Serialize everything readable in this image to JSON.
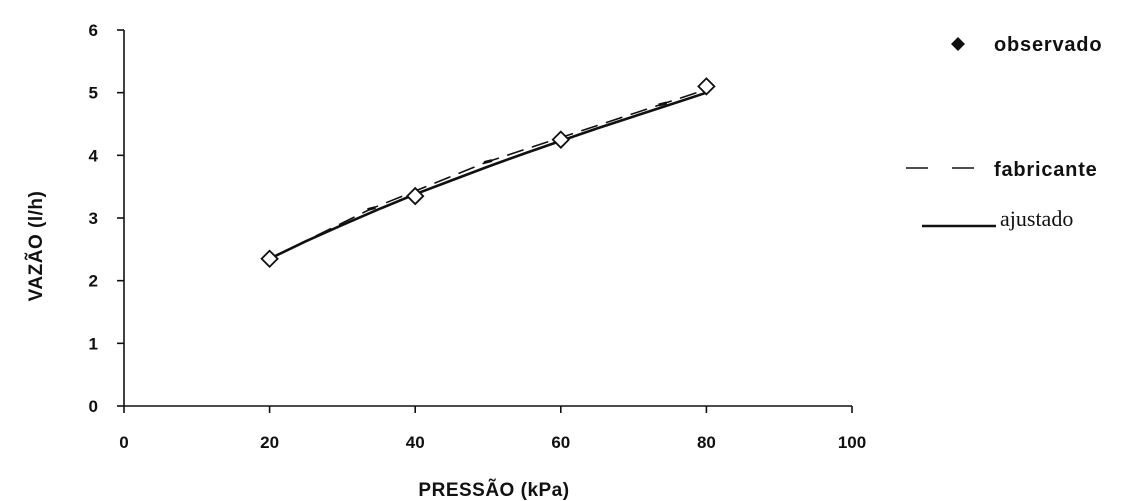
{
  "chart_data": {
    "type": "line",
    "title": "",
    "xlabel": "PRESSÃO (kPa)",
    "ylabel": "VAZÃO (l/h)",
    "xlim": [
      0,
      100
    ],
    "ylim": [
      0,
      6
    ],
    "xticks": [
      0,
      20,
      40,
      60,
      80,
      100
    ],
    "yticks": [
      0,
      1,
      2,
      3,
      4,
      5,
      6
    ],
    "grid": false,
    "legend_position": "right",
    "series": [
      {
        "name": "observado",
        "style": "markers",
        "x": [
          20,
          40,
          60,
          80
        ],
        "y": [
          2.35,
          3.35,
          4.25,
          5.1
        ]
      },
      {
        "name": "fabricante",
        "style": "dashed",
        "x": [
          20,
          34,
          50,
          74,
          80
        ],
        "y": [
          2.35,
          3.15,
          3.9,
          4.82,
          5.05
        ]
      },
      {
        "name": "ajustado",
        "style": "solid",
        "x": [
          20,
          25,
          30,
          35,
          40,
          45,
          50,
          55,
          60,
          65,
          70,
          75,
          80
        ],
        "y": [
          2.35,
          2.63,
          2.89,
          3.14,
          3.38,
          3.6,
          3.82,
          4.03,
          4.23,
          4.43,
          4.62,
          4.81,
          5.0
        ]
      }
    ]
  },
  "colors": {
    "ink": "#111111",
    "background": "#ffffff"
  }
}
